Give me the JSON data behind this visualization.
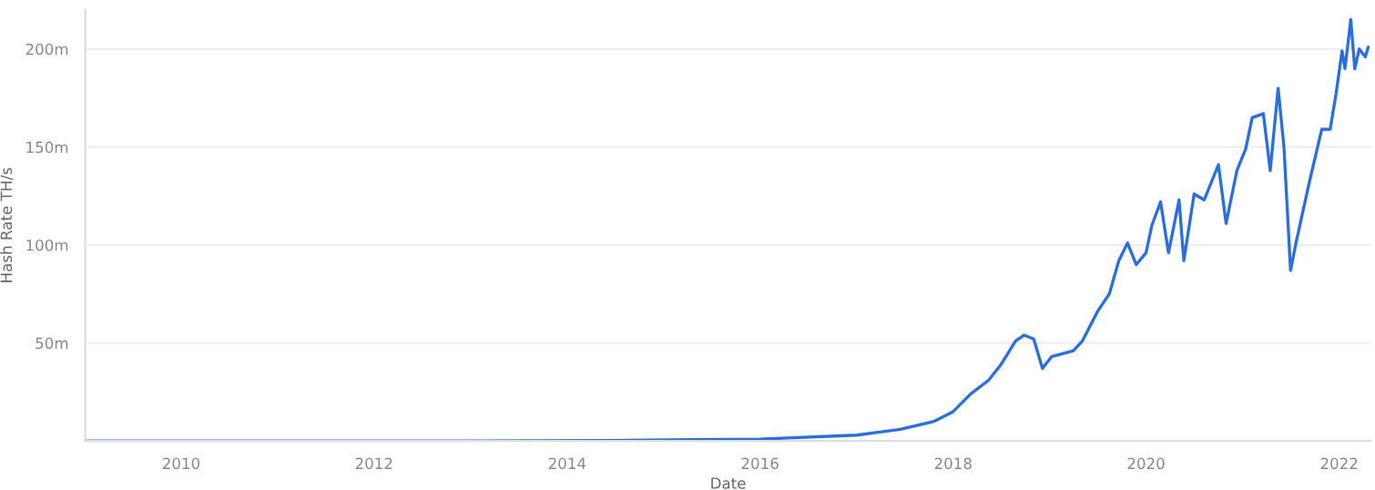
{
  "chart_data": {
    "type": "line",
    "xlabel": "Date",
    "ylabel": "Hash Rate TH/s",
    "grid": "y",
    "legend": false,
    "marker": "none",
    "line_style": "solid",
    "xlim": [
      "2009-01-03",
      "2022-05-01"
    ],
    "ylim": [
      0,
      220
    ],
    "xticks": [
      {
        "value": "2010-01-01",
        "label": "2010"
      },
      {
        "value": "2012-01-01",
        "label": "2012"
      },
      {
        "value": "2014-01-01",
        "label": "2014"
      },
      {
        "value": "2016-01-01",
        "label": "2016"
      },
      {
        "value": "2018-01-01",
        "label": "2018"
      },
      {
        "value": "2020-01-01",
        "label": "2020"
      },
      {
        "value": "2022-01-01",
        "label": "2022"
      }
    ],
    "yticks": [
      {
        "value": 50,
        "label": "50m"
      },
      {
        "value": 100,
        "label": "100m"
      },
      {
        "value": 150,
        "label": "150m"
      },
      {
        "value": 200,
        "label": "200m"
      }
    ],
    "series": [
      {
        "color": "#2a6fdf",
        "x": [
          "2009-01-03",
          "2011-01-01",
          "2013-01-01",
          "2014-06-01",
          "2016-01-01",
          "2017-01-01",
          "2017-03-10",
          "2017-06-15",
          "2017-10-20",
          "2018-01-01",
          "2018-03-08",
          "2018-05-15",
          "2018-07-01",
          "2018-08-25",
          "2018-09-27",
          "2018-11-02",
          "2018-12-05",
          "2019-01-08",
          "2019-04-01",
          "2019-05-05",
          "2019-07-01",
          "2019-08-15",
          "2019-09-20",
          "2019-10-23",
          "2019-11-25",
          "2020-01-01",
          "2020-01-23",
          "2020-02-25",
          "2020-03-26",
          "2020-05-05",
          "2020-05-23",
          "2020-07-01",
          "2020-08-08",
          "2020-10-01",
          "2020-10-30",
          "2020-12-10",
          "2021-01-12",
          "2021-02-06",
          "2021-03-20",
          "2021-04-15",
          "2021-05-15",
          "2021-06-06",
          "2021-07-01",
          "2021-07-23",
          "2021-09-10",
          "2021-10-27",
          "2021-11-28",
          "2021-12-20",
          "2022-01-12",
          "2022-01-23",
          "2022-02-14",
          "2022-03-01",
          "2022-03-18",
          "2022-04-10",
          "2022-04-21"
        ],
        "values": [
          0,
          0,
          0,
          0.3,
          1,
          3,
          4.2,
          6,
          10,
          15,
          24,
          31,
          39,
          51,
          54,
          52,
          37,
          43,
          46,
          51,
          66,
          75,
          92,
          101,
          90,
          96,
          110,
          122,
          96,
          123,
          92,
          126,
          123,
          141,
          111,
          138,
          149,
          165,
          167,
          138,
          180,
          150,
          87,
          102,
          132,
          159,
          159,
          177,
          199,
          190,
          215,
          190,
          200,
          196,
          201
        ]
      }
    ]
  }
}
